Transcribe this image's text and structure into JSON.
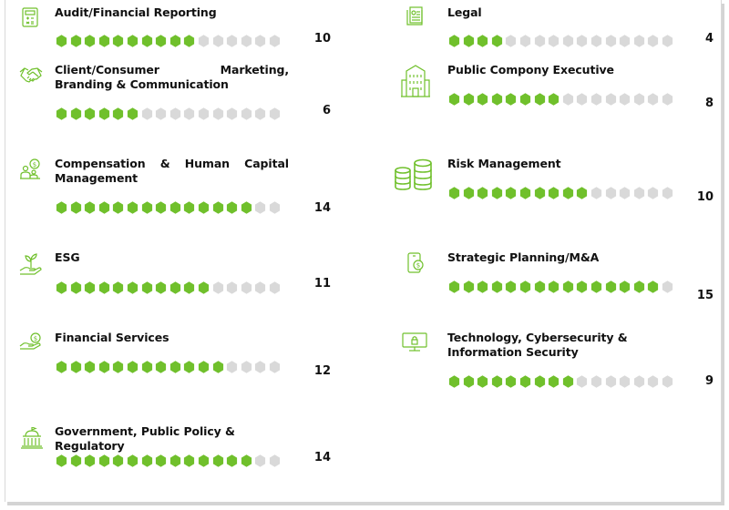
{
  "colors": {
    "filled": "#70c02c",
    "empty": "#d9d9d9",
    "icon": "#70c02c"
  },
  "chart_data": {
    "type": "bar",
    "scale_max": 16,
    "categories": [
      "Audit/Financial Reporting",
      "Client/Consumer Marketing, Branding & Communication",
      "Compensation & Human Capital Management",
      "ESG",
      "Financial Services",
      "Government, Public Policy & Regulatory",
      "Legal",
      "Public Compony Executive",
      "Risk Management",
      "Strategic Planning/M&A",
      "Technology, Cybersecurity & Information Security"
    ],
    "values": [
      10,
      6,
      14,
      11,
      12,
      14,
      4,
      8,
      10,
      15,
      9
    ]
  },
  "skills": [
    {
      "label": "Audit/Financial Reporting",
      "value": "10",
      "count": 10,
      "icon": "calculator-icon"
    },
    {
      "label": "Client/Consumer Marketing, Branding & Communication",
      "value": "6",
      "count": 6,
      "icon": "handshake-icon"
    },
    {
      "label": "Compensation & Human Capital Management",
      "value": "14",
      "count": 14,
      "icon": "people-dollar-icon"
    },
    {
      "label": "ESG",
      "value": "11",
      "count": 11,
      "icon": "plant-hand-icon"
    },
    {
      "label": "Financial Services",
      "value": "12",
      "count": 12,
      "icon": "hand-coin-icon"
    },
    {
      "label": "Government, Public Policy & Regulatory",
      "value": "14",
      "count": 14,
      "icon": "capitol-building-icon"
    },
    {
      "label": "Legal",
      "value": "4",
      "count": 4,
      "icon": "legal-document-icon"
    },
    {
      "label": "Public Compony Executive",
      "value": "8",
      "count": 8,
      "icon": "office-building-icon"
    },
    {
      "label": "Risk Management",
      "value": "10",
      "count": 10,
      "icon": "coin-stacks-icon"
    },
    {
      "label": "Strategic Planning/M&A",
      "value": "15",
      "count": 15,
      "icon": "phone-dollar-icon"
    },
    {
      "label": "Technology, Cybersecurity & Information Security",
      "value": "9",
      "count": 9,
      "icon": "monitor-lock-icon"
    }
  ]
}
